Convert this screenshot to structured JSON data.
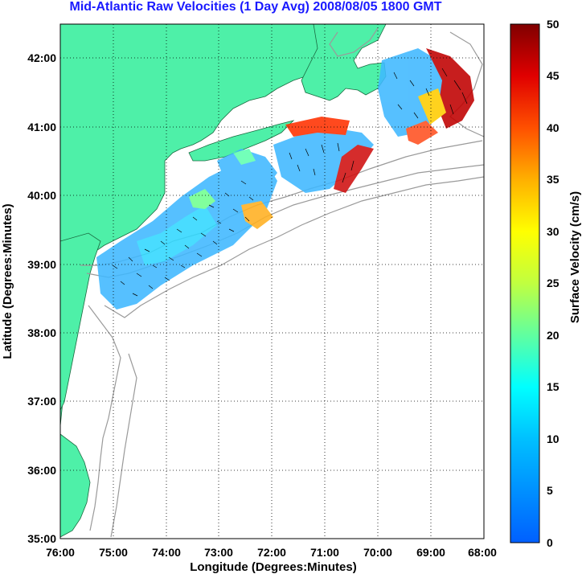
{
  "title": "Mid-Atlantic Raw Velocities (1 Day Avg) 2008/08/05 1800 GMT",
  "map": {
    "xlabel": "Longitude (Degrees:Minutes)",
    "ylabel": "Latitude (Degrees:Minutes)",
    "x_ticks": [
      "76:00",
      "75:00",
      "74:00",
      "73:00",
      "72:00",
      "71:00",
      "70:00",
      "69:00",
      "68:00"
    ],
    "y_ticks": [
      "42:00",
      "41:00",
      "40:00",
      "39:00",
      "38:00",
      "37:00",
      "36:00",
      "35:00"
    ],
    "lon_range": [
      -76,
      -68
    ],
    "lat_range": [
      35,
      42.5
    ],
    "grid": "dotted",
    "land_color": "#4ef0a8",
    "contour_color": "#9a9a9a"
  },
  "colorbar": {
    "label": "Surface Velocity (cm/s)",
    "ticks": [
      "50",
      "45",
      "40",
      "35",
      "30",
      "25",
      "20",
      "15",
      "10",
      "5",
      "0"
    ],
    "range": [
      0,
      50
    ],
    "colormap": "jet"
  }
}
